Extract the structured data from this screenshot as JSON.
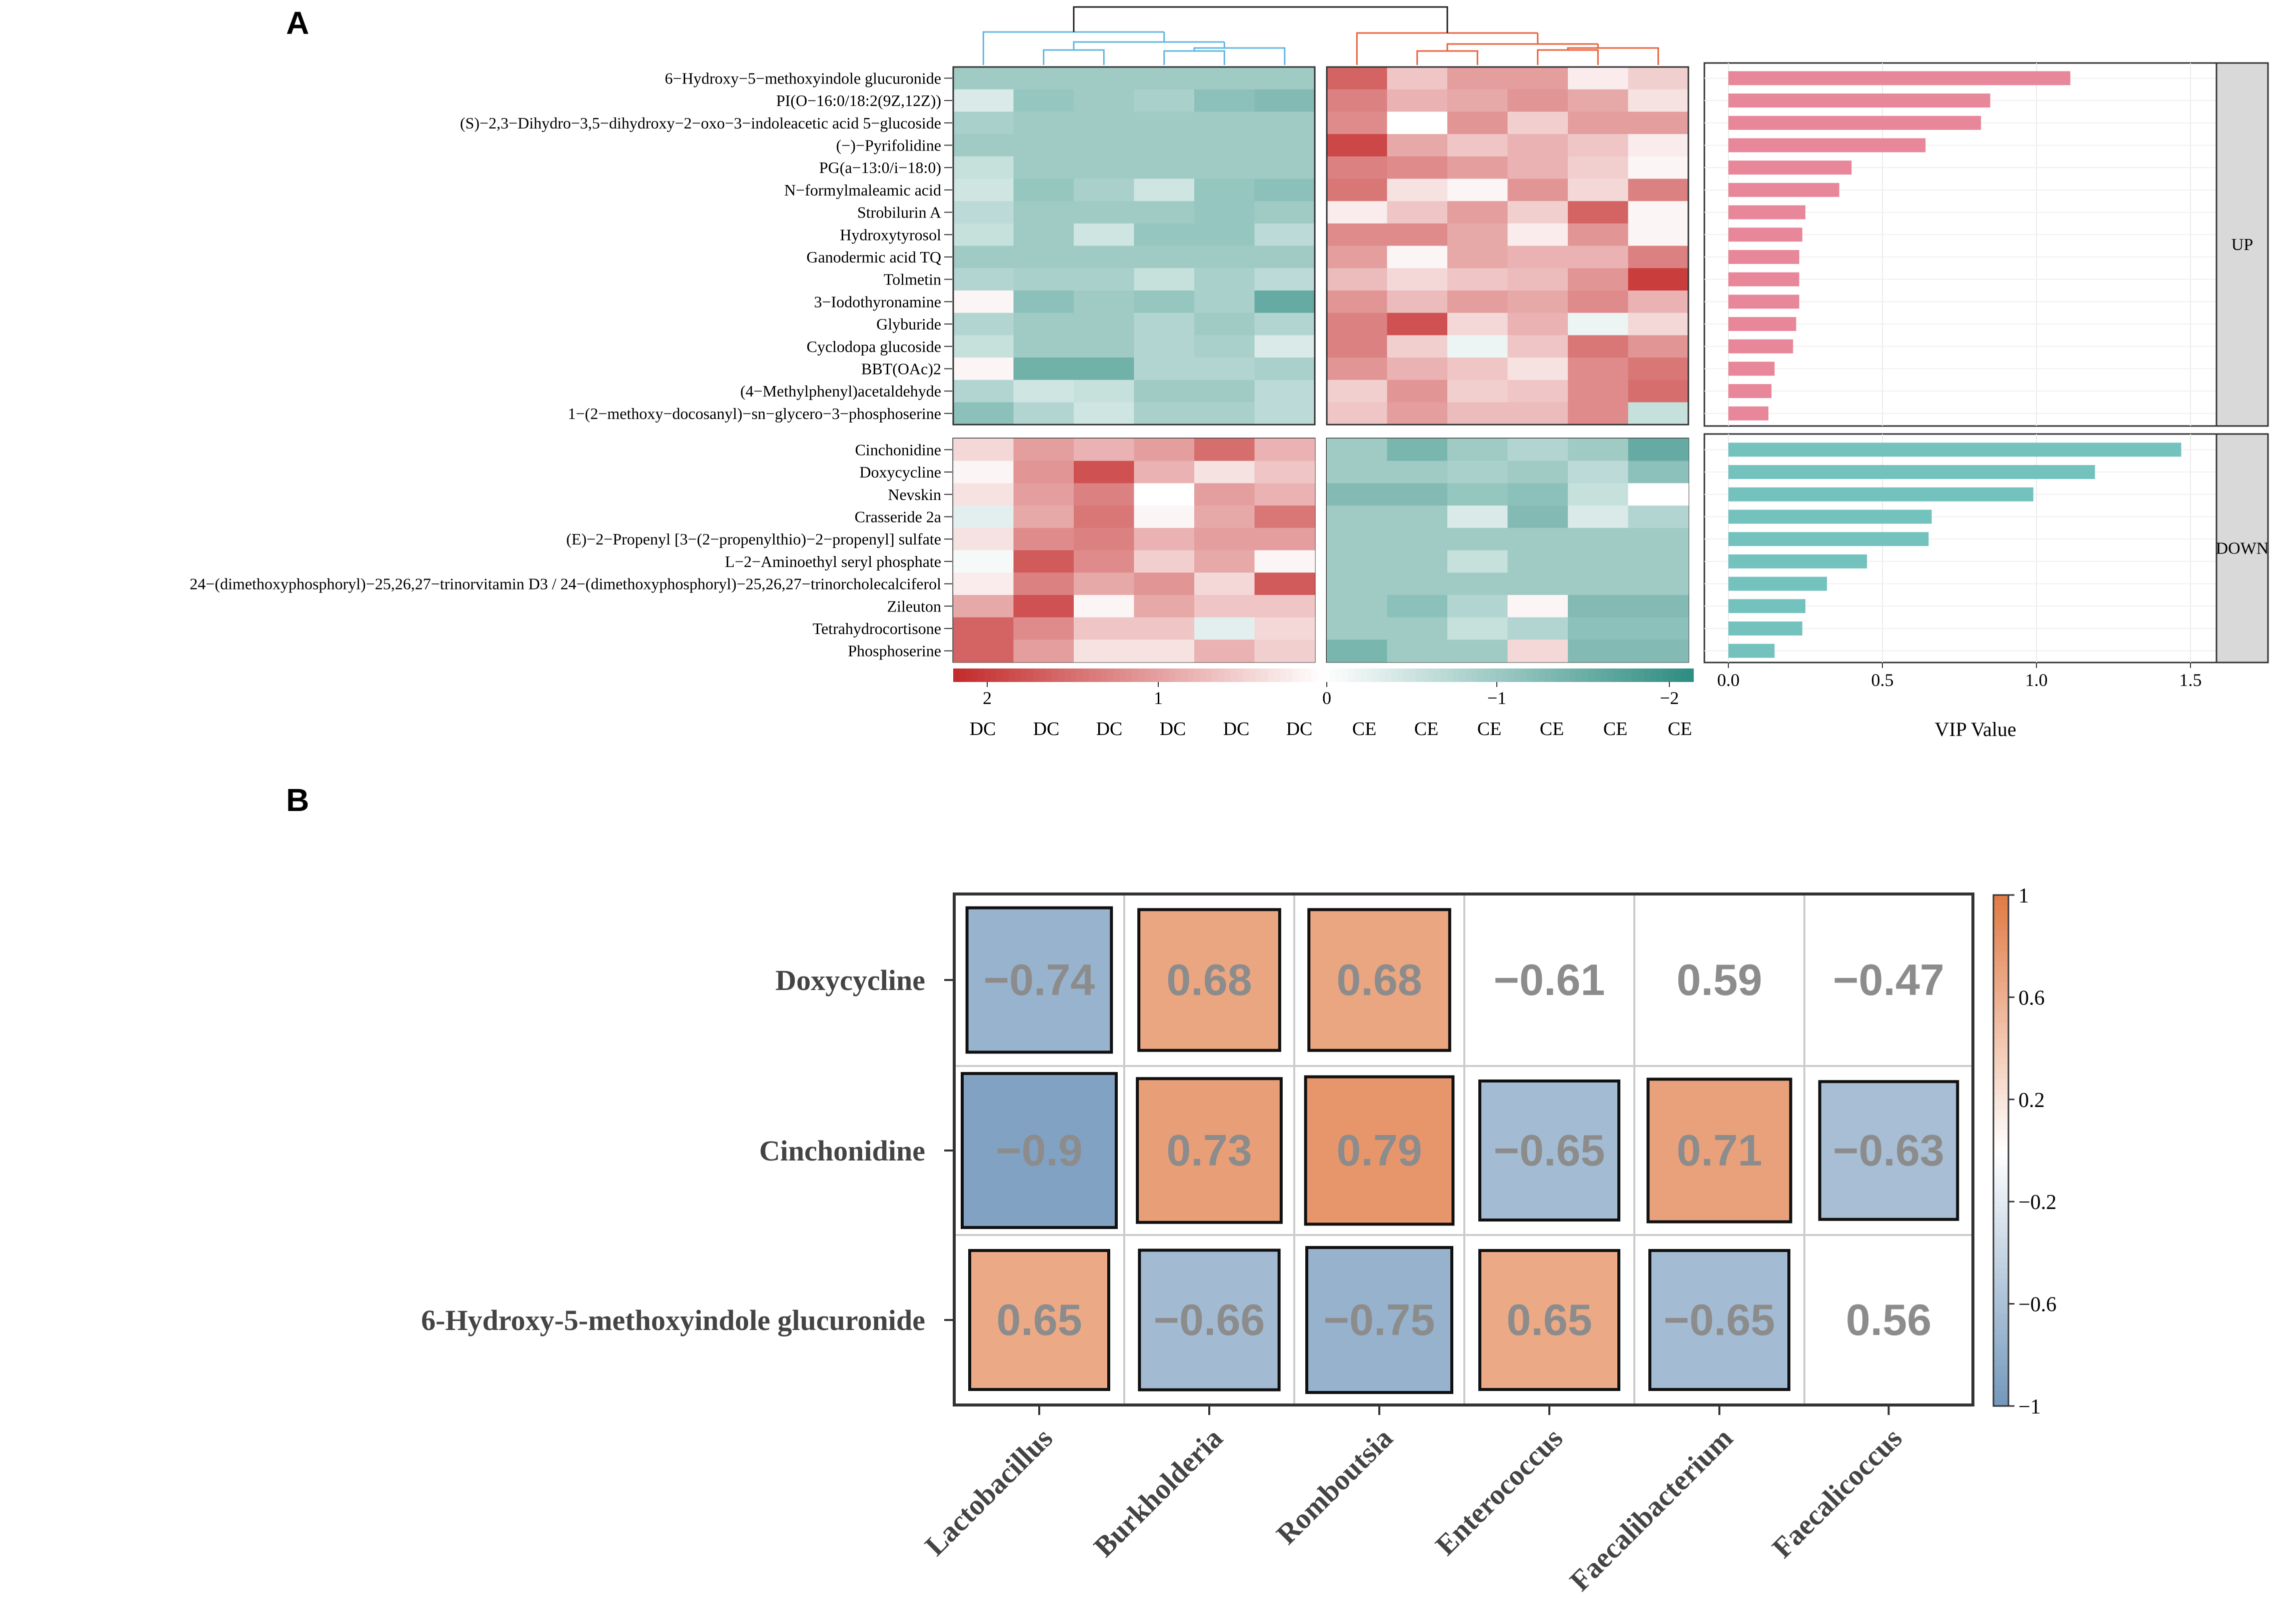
{
  "panel_labels": [
    "A",
    "B"
  ],
  "chart_data": [
    {
      "type": "heatmap",
      "title": "",
      "up_metabolites": [
        "6−Hydroxy−5−methoxyindole glucuronide",
        "PI(O−16:0/18:2(9Z,12Z))",
        "(S)−2,3−Dihydro−3,5−dihydroxy−2−oxo−3−indoleacetic acid 5−glucoside",
        "(−)−Pyrifolidine",
        "PG(a−13:0/i−18:0)",
        "N−formylmaleamic acid",
        "Strobilurin A",
        "Hydroxytyrosol",
        "Ganodermic acid TQ",
        "Tolmetin",
        "3−Iodothyronamine",
        "Glyburide",
        "Cyclodopa glucoside",
        "BBT(OAc)2",
        "(4−Methylphenyl)acetaldehyde",
        "1−(2−methoxy−docosanyl)−sn−glycero−3−phosphoserine"
      ],
      "down_metabolites": [
        "Cinchonidine",
        "Doxycycline",
        "Nevskin",
        "Crasseride 2a",
        "(E)−2−Propenyl [3−(2−propenylthio)−2−propenyl] sulfate",
        "L−2−Aminoethyl seryl phosphate",
        "24−(dimethoxyphosphoryl)−25,26,27−trinorvitamin D3 / 24−(dimethoxyphosphoryl)−25,26,27−trinorcholecalciferol",
        "Zileuton",
        "Tetrahydrocortisone",
        "Phosphoserine"
      ],
      "samples": [
        "DC",
        "DC",
        "DC",
        "DC",
        "DC",
        "DC",
        "CE",
        "CE",
        "CE",
        "CE",
        "CE",
        "CE"
      ],
      "zscores_up": [
        [
          -1.0,
          -1.0,
          -1.0,
          -1.0,
          -1.0,
          -1.0,
          1.6,
          0.6,
          1.0,
          1.0,
          0.2,
          0.5
        ],
        [
          -0.4,
          -1.1,
          -1.0,
          -0.9,
          -1.2,
          -1.3,
          1.3,
          0.8,
          0.9,
          1.1,
          0.9,
          0.3
        ],
        [
          -0.9,
          -1.0,
          -1.0,
          -1.0,
          -1.0,
          -1.0,
          1.2,
          0.0,
          1.1,
          0.5,
          1.0,
          1.0
        ],
        [
          -1.0,
          -1.0,
          -1.0,
          -1.0,
          -1.0,
          -1.0,
          1.9,
          0.9,
          0.6,
          0.8,
          0.6,
          0.2
        ],
        [
          -0.6,
          -1.0,
          -1.0,
          -1.0,
          -1.0,
          -1.0,
          1.3,
          1.2,
          1.0,
          0.8,
          0.5,
          0.1
        ],
        [
          -0.5,
          -1.1,
          -0.9,
          -0.5,
          -1.1,
          -1.2,
          1.4,
          0.3,
          0.1,
          1.1,
          0.4,
          1.3
        ],
        [
          -0.7,
          -1.0,
          -1.0,
          -1.0,
          -1.1,
          -1.0,
          0.2,
          0.6,
          1.0,
          0.5,
          1.6,
          0.1
        ],
        [
          -0.6,
          -1.0,
          -0.5,
          -1.1,
          -1.1,
          -0.7,
          1.2,
          1.2,
          0.9,
          0.2,
          1.1,
          0.1
        ],
        [
          -1.0,
          -1.0,
          -1.0,
          -1.0,
          -1.0,
          -1.0,
          1.0,
          0.1,
          0.9,
          0.8,
          0.8,
          1.3
        ],
        [
          -0.8,
          -0.9,
          -0.9,
          -0.6,
          -0.9,
          -0.7,
          0.7,
          0.4,
          0.6,
          0.7,
          1.1,
          2.0
        ],
        [
          0.1,
          -1.2,
          -1.0,
          -1.1,
          -0.9,
          -1.6,
          1.1,
          0.7,
          1.0,
          0.9,
          1.2,
          0.8
        ],
        [
          -0.8,
          -1.0,
          -1.0,
          -0.8,
          -1.0,
          -0.8,
          1.3,
          1.8,
          0.4,
          0.8,
          -0.2,
          0.4
        ],
        [
          -0.6,
          -1.0,
          -1.0,
          -0.8,
          -0.9,
          -0.4,
          1.3,
          0.5,
          -0.2,
          0.6,
          1.4,
          1.1
        ],
        [
          0.1,
          -1.5,
          -1.5,
          -0.8,
          -0.8,
          -0.9,
          1.1,
          0.8,
          0.6,
          0.3,
          1.2,
          1.4
        ],
        [
          -0.8,
          -0.5,
          -0.6,
          -1.0,
          -1.0,
          -0.7,
          0.5,
          1.1,
          0.5,
          0.6,
          1.2,
          1.5
        ],
        [
          -1.2,
          -0.8,
          -0.5,
          -0.9,
          -0.9,
          -0.7,
          0.6,
          1.0,
          0.7,
          0.7,
          1.2,
          -0.6
        ]
      ],
      "zscores_down": [
        [
          0.4,
          1.0,
          0.8,
          1.0,
          1.5,
          0.8,
          -1.0,
          -1.4,
          -1.0,
          -0.8,
          -1.0,
          -1.6
        ],
        [
          0.1,
          1.1,
          1.8,
          0.8,
          0.3,
          0.6,
          -1.0,
          -1.0,
          -0.9,
          -1.0,
          -0.7,
          -1.2
        ],
        [
          0.3,
          1.0,
          1.3,
          0.0,
          1.0,
          0.8,
          -1.3,
          -1.3,
          -1.1,
          -1.2,
          -0.6,
          0.0
        ],
        [
          -0.3,
          0.9,
          1.4,
          0.1,
          0.9,
          1.4,
          -1.0,
          -1.0,
          -0.4,
          -1.3,
          -0.4,
          -0.8
        ],
        [
          0.3,
          1.2,
          1.3,
          0.8,
          1.0,
          1.0,
          -1.0,
          -1.0,
          -1.0,
          -1.0,
          -1.0,
          -1.0
        ],
        [
          -0.1,
          1.7,
          1.2,
          0.5,
          0.9,
          0.1,
          -1.0,
          -1.0,
          -0.6,
          -1.0,
          -1.0,
          -1.0
        ],
        [
          0.2,
          1.3,
          0.9,
          1.1,
          0.4,
          1.7,
          -1.0,
          -1.0,
          -1.0,
          -1.0,
          -1.0,
          -1.0
        ],
        [
          0.9,
          1.8,
          0.1,
          0.9,
          0.6,
          0.6,
          -1.0,
          -1.2,
          -0.8,
          0.1,
          -1.3,
          -1.3
        ],
        [
          1.6,
          1.2,
          0.6,
          0.6,
          -0.3,
          0.4,
          -1.0,
          -1.0,
          -0.6,
          -0.8,
          -1.2,
          -1.2
        ],
        [
          1.6,
          1.0,
          0.3,
          0.3,
          0.8,
          0.5,
          -1.4,
          -1.0,
          -1.0,
          0.4,
          -1.3,
          -1.3
        ]
      ],
      "colorbar_ticks": [
        "2",
        "1",
        "0",
        "−1",
        "−2"
      ],
      "colorbar_range": [
        2.2,
        -2.2
      ]
    },
    {
      "type": "bar",
      "orientation": "horizontal",
      "xlabel": "VIP Value",
      "xlim": [
        0,
        1.55
      ],
      "x_ticks": [
        "0.0",
        "0.5",
        "1.0",
        "1.5"
      ],
      "x_tick_values": [
        0,
        0.5,
        1.0,
        1.5
      ],
      "groups": [
        {
          "label": "UP",
          "color": "#e8879a",
          "values": [
            1.11,
            0.85,
            0.82,
            0.64,
            0.4,
            0.36,
            0.25,
            0.24,
            0.23,
            0.23,
            0.23,
            0.22,
            0.21,
            0.15,
            0.14,
            0.13
          ]
        },
        {
          "label": "DOWN",
          "color": "#74c2be",
          "values": [
            1.47,
            1.19,
            0.99,
            0.66,
            0.65,
            0.45,
            0.32,
            0.25,
            0.24,
            0.15
          ]
        }
      ]
    },
    {
      "type": "heatmap",
      "subtype": "correlation",
      "rows": [
        "Doxycycline",
        "Cinchonidine",
        "6-Hydroxy-5-methoxyindole glucuronide"
      ],
      "columns": [
        "Lactobacillus",
        "Burkholderia",
        "Romboutsia",
        "Enterococcus",
        "Faecalibacterium",
        "Faecalicoccus"
      ],
      "values": [
        [
          -0.74,
          0.68,
          0.68,
          -0.61,
          0.59,
          -0.47
        ],
        [
          -0.9,
          0.73,
          0.79,
          -0.65,
          0.71,
          -0.63
        ],
        [
          0.65,
          -0.66,
          -0.75,
          0.65,
          -0.65,
          0.56
        ]
      ],
      "labels": [
        [
          "−0.74",
          "0.68",
          "0.68",
          "−0.61",
          "0.59",
          "−0.47"
        ],
        [
          "−0.9",
          "0.73",
          "0.79",
          "−0.65",
          "0.71",
          "−0.63"
        ],
        [
          "0.65",
          "−0.66",
          "−0.75",
          "0.65",
          "−0.65",
          "0.56"
        ]
      ],
      "significant": [
        [
          true,
          true,
          true,
          false,
          false,
          false
        ],
        [
          true,
          true,
          true,
          true,
          true,
          true
        ],
        [
          true,
          true,
          true,
          true,
          true,
          false
        ]
      ],
      "colorbar_ticks": [
        "1",
        "0.6",
        "0.2",
        "−0.2",
        "−0.6",
        "−1"
      ],
      "colorbar_values": [
        1,
        0.6,
        0.2,
        -0.2,
        -0.6,
        -1
      ],
      "colors": {
        "positive": "#e07a45",
        "negative": "#7398bb",
        "neutral": "#ffffff"
      }
    }
  ],
  "colors": {
    "heat_high": "#c42a2a",
    "heat_mid": "#ffffff",
    "heat_low": "#2d8c80",
    "dendro_dc": "#5fb6e0",
    "dendro_ce": "#e8613a",
    "dendro_root": "#222222",
    "strip_bg": "#d9d9d9"
  }
}
